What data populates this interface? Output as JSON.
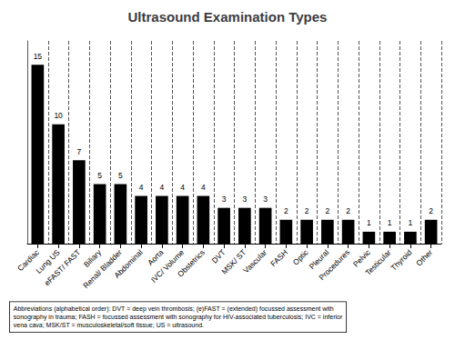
{
  "chart_data": {
    "type": "bar",
    "title": "Ultrasound Examination Types",
    "categories": [
      "Cardiac",
      "Lung US",
      "eFAST/ FAST",
      "Biliary",
      "Renal/ Bladder",
      "Abdominal",
      "Aorta",
      "IVC/ Volume",
      "Obstetrics",
      "DVT",
      "MSK/ ST",
      "Vascular",
      "FASH",
      "Optic",
      "Pleural",
      "Procedures",
      "Pelvic",
      "Testicular",
      "Thyroid",
      "Other"
    ],
    "values": [
      15,
      10,
      7,
      5,
      5,
      4,
      4,
      4,
      4,
      3,
      3,
      3,
      2,
      2,
      2,
      2,
      1,
      1,
      1,
      2
    ],
    "color": "#000000",
    "ylim": [
      0,
      17
    ],
    "grid": "x",
    "data_labels": true,
    "tick_labels": "x",
    "annotations": [
      "Abbreviations (alphabetical order): DVT = deep vein thrombosis; (e)FAST = (extended) focussed assessment with\nsonography in trauma; FASH = focussed assessment with sonography for HIV-associated tuberculosis; IVC = inferior\nvena cava; MSK/ST = musculoskeletal/soft tissue; US = ultrasound."
    ]
  }
}
